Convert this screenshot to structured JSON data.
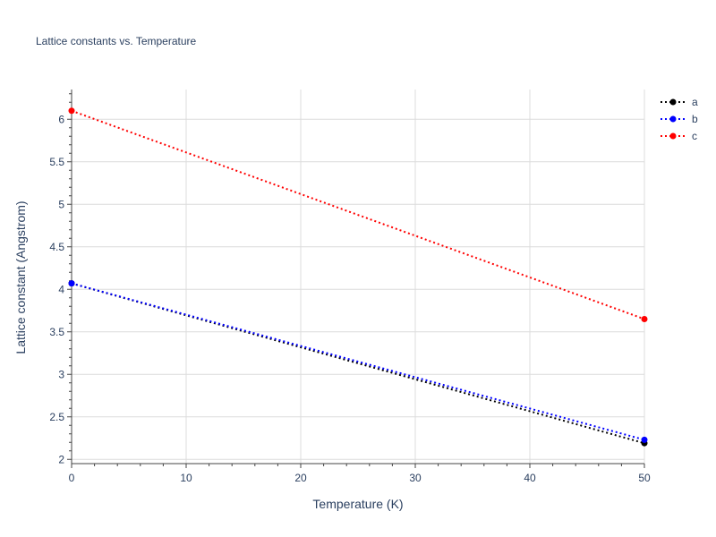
{
  "chart_data": {
    "type": "line",
    "title": "Lattice constants vs. Temperature",
    "xlabel": "Temperature (K)",
    "ylabel": "Lattice constant (Angstrom)",
    "xlim": [
      0,
      50
    ],
    "ylim": [
      1.95,
      6.35
    ],
    "xticks": [
      0,
      10,
      20,
      30,
      40,
      50
    ],
    "yticks": [
      2,
      2.5,
      3,
      3.5,
      4,
      4.5,
      5,
      5.5,
      6
    ],
    "grid": true,
    "legend_position": "top-right",
    "line_style": "dotted",
    "series": [
      {
        "name": "a",
        "color": "#000000",
        "x": [
          0,
          50
        ],
        "y": [
          4.07,
          2.19
        ]
      },
      {
        "name": "b",
        "color": "#0000ff",
        "x": [
          0,
          50
        ],
        "y": [
          4.07,
          2.23
        ]
      },
      {
        "name": "c",
        "color": "#ff0000",
        "x": [
          0,
          50
        ],
        "y": [
          6.1,
          3.65
        ]
      }
    ]
  }
}
